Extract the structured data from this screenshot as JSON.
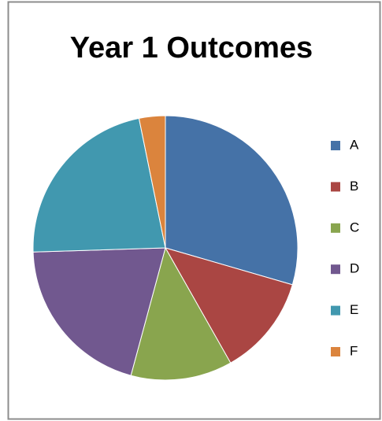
{
  "chart_data": {
    "type": "pie",
    "title": "Year 1 Outcomes",
    "categories": [
      "A",
      "B",
      "C",
      "D",
      "E",
      "F"
    ],
    "values": [
      29.5,
      12.3,
      12.4,
      20.3,
      22.3,
      3.2
    ],
    "colors": [
      "#4572a7",
      "#aa4643",
      "#89a54e",
      "#71588f",
      "#4198af",
      "#db843d"
    ],
    "legend": "right"
  }
}
